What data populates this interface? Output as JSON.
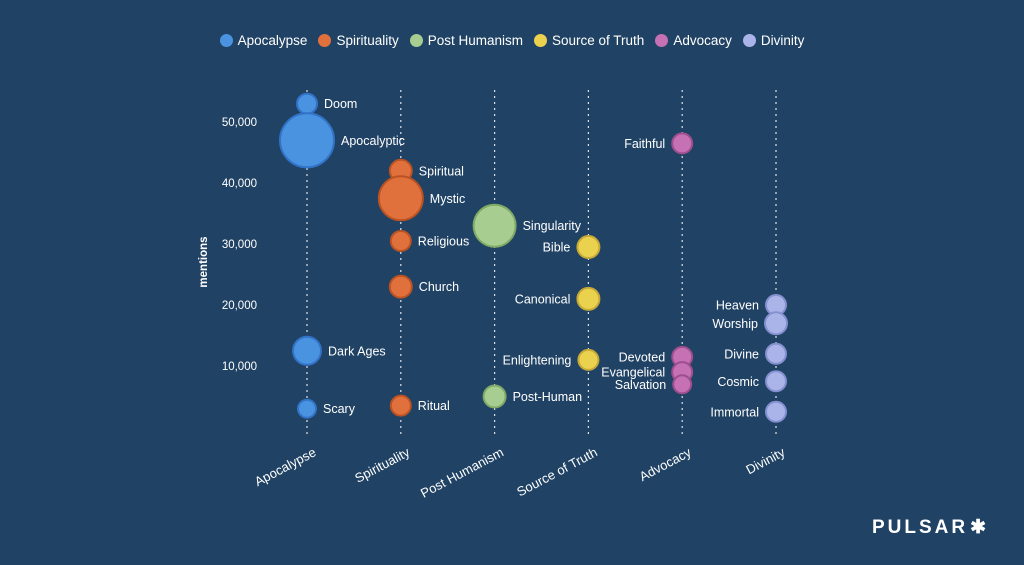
{
  "page": {
    "background": "#204264",
    "text_color": "#ffffff",
    "brand": {
      "name": "PULSAR",
      "star": "✱"
    }
  },
  "legend": {
    "position": "top",
    "items": [
      {
        "label": "Apocalypse",
        "color": "#4a93e1"
      },
      {
        "label": "Spirituality",
        "color": "#e0713d"
      },
      {
        "label": "Post Humanism",
        "color": "#a7ce90"
      },
      {
        "label": "Source of Truth",
        "color": "#ebd24e"
      },
      {
        "label": "Advocacy",
        "color": "#c571b3"
      },
      {
        "label": "Divinity",
        "color": "#aab4e9"
      }
    ]
  },
  "chart_data": {
    "type": "scatter",
    "subtype": "bubble",
    "title": "",
    "xlabel": "",
    "ylabel": "mentions",
    "ylim": [
      0,
      55000
    ],
    "y_ticks": [
      50000,
      40000,
      30000,
      20000,
      10000
    ],
    "y_tick_labels": [
      "50,000",
      "40,000",
      "30,000",
      "20,000",
      "10,000"
    ],
    "grid": "dashed-vertical-columns",
    "legend_position": "top",
    "categories": [
      "Apocalypse",
      "Spirituality",
      "Post Humanism",
      "Source of Truth",
      "Advocacy",
      "Divinity"
    ],
    "series": [
      {
        "name": "Apocalypse",
        "color": "#4a93e1",
        "stroke": "#3273c8",
        "points": [
          {
            "term": "Doom",
            "mentions": 53000,
            "size": 10,
            "label_side": "right"
          },
          {
            "term": "Apocalyptic",
            "mentions": 47000,
            "size": 27,
            "label_side": "right"
          },
          {
            "term": "Dark Ages",
            "mentions": 12500,
            "size": 14,
            "label_side": "right"
          },
          {
            "term": "Scary",
            "mentions": 3000,
            "size": 9,
            "label_side": "right"
          }
        ]
      },
      {
        "name": "Spirituality",
        "color": "#e0713d",
        "stroke": "#bc5222",
        "points": [
          {
            "term": "Spiritual",
            "mentions": 42000,
            "size": 11,
            "label_side": "right"
          },
          {
            "term": "Mystic",
            "mentions": 37500,
            "size": 22,
            "label_side": "right"
          },
          {
            "term": "Religious",
            "mentions": 30500,
            "size": 10,
            "label_side": "right"
          },
          {
            "term": "Church",
            "mentions": 23000,
            "size": 11,
            "label_side": "right"
          },
          {
            "term": "Ritual",
            "mentions": 3500,
            "size": 10,
            "label_side": "right"
          }
        ]
      },
      {
        "name": "Post Humanism",
        "color": "#a7ce90",
        "stroke": "#7fa965",
        "points": [
          {
            "term": "Singularity",
            "mentions": 33000,
            "size": 21,
            "label_side": "right"
          },
          {
            "term": "Post-Human",
            "mentions": 5000,
            "size": 11,
            "label_side": "right"
          }
        ]
      },
      {
        "name": "Source of Truth",
        "color": "#ebd24e",
        "stroke": "#c6a937",
        "points": [
          {
            "term": "Bible",
            "mentions": 29500,
            "size": 11,
            "label_side": "left"
          },
          {
            "term": "Canonical",
            "mentions": 21000,
            "size": 11,
            "label_side": "left"
          },
          {
            "term": "Enlightening",
            "mentions": 11000,
            "size": 10,
            "label_side": "left"
          }
        ]
      },
      {
        "name": "Advocacy",
        "color": "#c571b3",
        "stroke": "#9d4e8e",
        "points": [
          {
            "term": "Faithful",
            "mentions": 46500,
            "size": 10,
            "label_side": "left"
          },
          {
            "term": "Devoted",
            "mentions": 11500,
            "size": 10,
            "label_side": "left"
          },
          {
            "term": "Evangelical",
            "mentions": 9000,
            "size": 10,
            "label_side": "left"
          },
          {
            "term": "Salvation",
            "mentions": 7000,
            "size": 9,
            "label_side": "left"
          }
        ]
      },
      {
        "name": "Divinity",
        "color": "#aab4e9",
        "stroke": "#8490cf",
        "points": [
          {
            "term": "Heaven",
            "mentions": 20000,
            "size": 10,
            "label_side": "left"
          },
          {
            "term": "Worship",
            "mentions": 17000,
            "size": 11,
            "label_side": "left"
          },
          {
            "term": "Divine",
            "mentions": 12000,
            "size": 10,
            "label_side": "left"
          },
          {
            "term": "Cosmic",
            "mentions": 7500,
            "size": 10,
            "label_side": "left"
          },
          {
            "term": "Immortal",
            "mentions": 2500,
            "size": 10,
            "label_side": "left"
          }
        ]
      }
    ]
  }
}
